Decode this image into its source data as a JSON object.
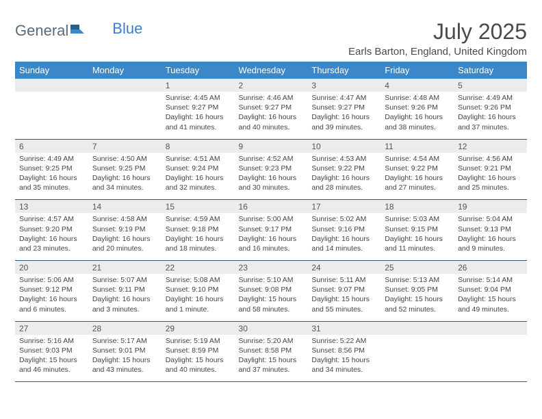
{
  "brand": {
    "part1": "General",
    "part2": "Blue"
  },
  "title": "July 2025",
  "location": "Earls Barton, England, United Kingdom",
  "colors": {
    "header_bg": "#3b87c8",
    "header_text": "#ffffff",
    "daynum_bg": "#ececec",
    "border": "#2a5d8a",
    "logo_gray": "#5a6a78",
    "logo_blue": "#3b7fc4",
    "title_color": "#4a4a4a"
  },
  "fonts": {
    "title_size_pt": 24,
    "location_size_pt": 11,
    "dayhead_size_pt": 10,
    "daynum_size_pt": 9,
    "cell_size_pt": 8
  },
  "day_names": [
    "Sunday",
    "Monday",
    "Tuesday",
    "Wednesday",
    "Thursday",
    "Friday",
    "Saturday"
  ],
  "weeks": [
    {
      "nums": [
        "",
        "",
        "1",
        "2",
        "3",
        "4",
        "5"
      ],
      "data": [
        "",
        "",
        "Sunrise: 4:45 AM\nSunset: 9:27 PM\nDaylight: 16 hours and 41 minutes.",
        "Sunrise: 4:46 AM\nSunset: 9:27 PM\nDaylight: 16 hours and 40 minutes.",
        "Sunrise: 4:47 AM\nSunset: 9:27 PM\nDaylight: 16 hours and 39 minutes.",
        "Sunrise: 4:48 AM\nSunset: 9:26 PM\nDaylight: 16 hours and 38 minutes.",
        "Sunrise: 4:49 AM\nSunset: 9:26 PM\nDaylight: 16 hours and 37 minutes."
      ]
    },
    {
      "nums": [
        "6",
        "7",
        "8",
        "9",
        "10",
        "11",
        "12"
      ],
      "data": [
        "Sunrise: 4:49 AM\nSunset: 9:25 PM\nDaylight: 16 hours and 35 minutes.",
        "Sunrise: 4:50 AM\nSunset: 9:25 PM\nDaylight: 16 hours and 34 minutes.",
        "Sunrise: 4:51 AM\nSunset: 9:24 PM\nDaylight: 16 hours and 32 minutes.",
        "Sunrise: 4:52 AM\nSunset: 9:23 PM\nDaylight: 16 hours and 30 minutes.",
        "Sunrise: 4:53 AM\nSunset: 9:22 PM\nDaylight: 16 hours and 28 minutes.",
        "Sunrise: 4:54 AM\nSunset: 9:22 PM\nDaylight: 16 hours and 27 minutes.",
        "Sunrise: 4:56 AM\nSunset: 9:21 PM\nDaylight: 16 hours and 25 minutes."
      ]
    },
    {
      "nums": [
        "13",
        "14",
        "15",
        "16",
        "17",
        "18",
        "19"
      ],
      "data": [
        "Sunrise: 4:57 AM\nSunset: 9:20 PM\nDaylight: 16 hours and 23 minutes.",
        "Sunrise: 4:58 AM\nSunset: 9:19 PM\nDaylight: 16 hours and 20 minutes.",
        "Sunrise: 4:59 AM\nSunset: 9:18 PM\nDaylight: 16 hours and 18 minutes.",
        "Sunrise: 5:00 AM\nSunset: 9:17 PM\nDaylight: 16 hours and 16 minutes.",
        "Sunrise: 5:02 AM\nSunset: 9:16 PM\nDaylight: 16 hours and 14 minutes.",
        "Sunrise: 5:03 AM\nSunset: 9:15 PM\nDaylight: 16 hours and 11 minutes.",
        "Sunrise: 5:04 AM\nSunset: 9:13 PM\nDaylight: 16 hours and 9 minutes."
      ]
    },
    {
      "nums": [
        "20",
        "21",
        "22",
        "23",
        "24",
        "25",
        "26"
      ],
      "data": [
        "Sunrise: 5:06 AM\nSunset: 9:12 PM\nDaylight: 16 hours and 6 minutes.",
        "Sunrise: 5:07 AM\nSunset: 9:11 PM\nDaylight: 16 hours and 3 minutes.",
        "Sunrise: 5:08 AM\nSunset: 9:10 PM\nDaylight: 16 hours and 1 minute.",
        "Sunrise: 5:10 AM\nSunset: 9:08 PM\nDaylight: 15 hours and 58 minutes.",
        "Sunrise: 5:11 AM\nSunset: 9:07 PM\nDaylight: 15 hours and 55 minutes.",
        "Sunrise: 5:13 AM\nSunset: 9:05 PM\nDaylight: 15 hours and 52 minutes.",
        "Sunrise: 5:14 AM\nSunset: 9:04 PM\nDaylight: 15 hours and 49 minutes."
      ]
    },
    {
      "nums": [
        "27",
        "28",
        "29",
        "30",
        "31",
        "",
        ""
      ],
      "data": [
        "Sunrise: 5:16 AM\nSunset: 9:03 PM\nDaylight: 15 hours and 46 minutes.",
        "Sunrise: 5:17 AM\nSunset: 9:01 PM\nDaylight: 15 hours and 43 minutes.",
        "Sunrise: 5:19 AM\nSunset: 8:59 PM\nDaylight: 15 hours and 40 minutes.",
        "Sunrise: 5:20 AM\nSunset: 8:58 PM\nDaylight: 15 hours and 37 minutes.",
        "Sunrise: 5:22 AM\nSunset: 8:56 PM\nDaylight: 15 hours and 34 minutes.",
        "",
        ""
      ]
    }
  ]
}
